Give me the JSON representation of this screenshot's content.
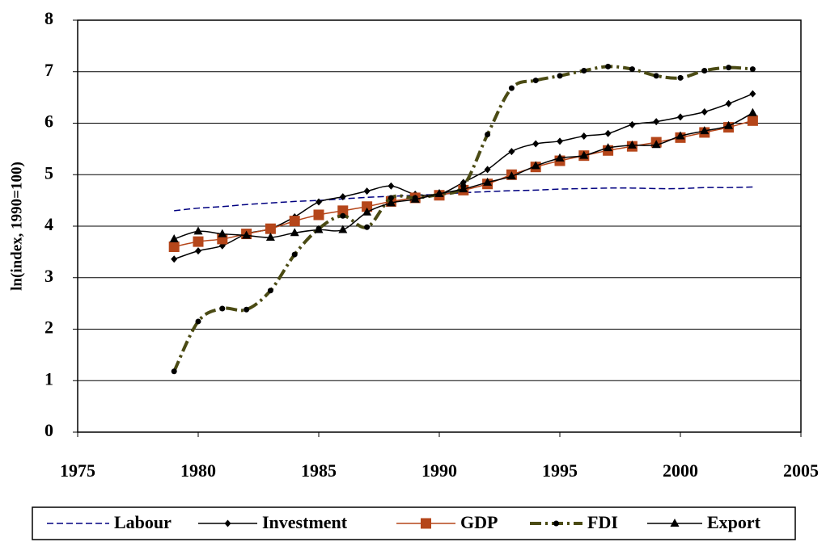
{
  "chart_data": {
    "type": "line",
    "y_label": "ln(index, 1990=100)",
    "x": [
      1979,
      1980,
      1981,
      1982,
      1983,
      1984,
      1985,
      1986,
      1987,
      1988,
      1989,
      1990,
      1991,
      1992,
      1993,
      1994,
      1995,
      1996,
      1997,
      1998,
      1999,
      2000,
      2001,
      2002,
      2003
    ],
    "xlim": [
      1975,
      2005
    ],
    "xticks": [
      1975,
      1980,
      1985,
      1990,
      1995,
      2000,
      2005
    ],
    "ylim": [
      0,
      8
    ],
    "yticks": [
      0,
      1,
      2,
      3,
      4,
      5,
      6,
      7,
      8
    ],
    "grid": true,
    "legend": "bottom",
    "series": [
      {
        "name": "Labour",
        "color": "#000080",
        "dash": "dashed",
        "marker": "none",
        "values": [
          4.3,
          4.35,
          4.38,
          4.42,
          4.45,
          4.48,
          4.5,
          4.53,
          4.56,
          4.58,
          4.6,
          4.62,
          4.65,
          4.67,
          4.69,
          4.7,
          4.72,
          4.73,
          4.74,
          4.74,
          4.73,
          4.73,
          4.75,
          4.75,
          4.76
        ]
      },
      {
        "name": "Investment",
        "color": "#000000",
        "dash": "solid",
        "marker": "diamond",
        "values": [
          3.36,
          3.52,
          3.62,
          3.85,
          3.95,
          4.18,
          4.47,
          4.57,
          4.68,
          4.78,
          4.62,
          4.62,
          4.85,
          5.1,
          5.45,
          5.6,
          5.65,
          5.75,
          5.8,
          5.97,
          6.03,
          6.12,
          6.22,
          6.38,
          6.57
        ]
      },
      {
        "name": "GDP",
        "color": "#B5461A",
        "dash": "solid",
        "marker": "square",
        "values": [
          3.6,
          3.7,
          3.75,
          3.85,
          3.95,
          4.1,
          4.22,
          4.3,
          4.38,
          4.48,
          4.55,
          4.6,
          4.7,
          4.82,
          5.0,
          5.15,
          5.27,
          5.37,
          5.47,
          5.55,
          5.63,
          5.72,
          5.82,
          5.92,
          6.05
        ]
      },
      {
        "name": "FDI",
        "color": "#4B4B14",
        "dash": "dashdot",
        "marker": "circle",
        "values": [
          1.18,
          2.15,
          2.4,
          2.38,
          2.75,
          3.45,
          3.95,
          4.2,
          3.98,
          4.55,
          4.55,
          4.62,
          4.78,
          5.78,
          6.68,
          6.83,
          6.92,
          7.02,
          7.1,
          7.05,
          6.92,
          6.88,
          7.02,
          7.08,
          7.05
        ]
      },
      {
        "name": "Export",
        "color": "#000000",
        "dash": "solid",
        "marker": "triangle",
        "values": [
          3.75,
          3.9,
          3.85,
          3.82,
          3.78,
          3.87,
          3.93,
          3.93,
          4.27,
          4.45,
          4.52,
          4.63,
          4.72,
          4.85,
          4.97,
          5.17,
          5.32,
          5.37,
          5.52,
          5.57,
          5.58,
          5.75,
          5.85,
          5.95,
          6.2
        ]
      }
    ]
  }
}
